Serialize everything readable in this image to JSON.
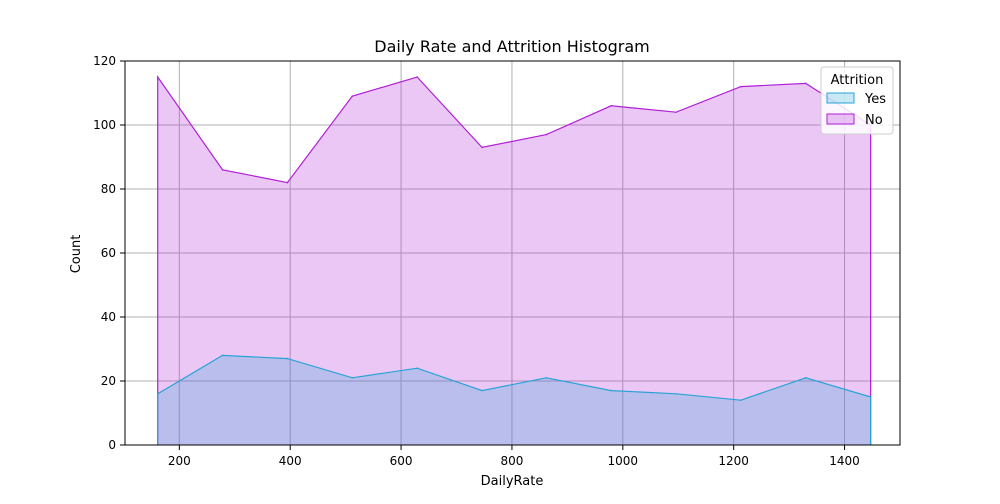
{
  "chart_data": {
    "type": "area",
    "title": "Daily Rate and Attrition Histogram",
    "xlabel": "DailyRate",
    "ylabel": "Count",
    "xlim": [
      102,
      1500
    ],
    "ylim": [
      0,
      120
    ],
    "x_ticks": [
      200,
      400,
      600,
      800,
      1000,
      1200,
      1400
    ],
    "y_ticks": [
      0,
      20,
      40,
      60,
      80,
      100,
      120
    ],
    "grid": true,
    "legend": {
      "title": "Attrition",
      "placement": "top-right"
    },
    "x": [
      161,
      278,
      395,
      512,
      629,
      746,
      862,
      979,
      1096,
      1213,
      1330,
      1447
    ],
    "series": [
      {
        "name": "Yes",
        "color": "#29a3d6",
        "values": [
          16,
          28,
          27,
          21,
          24,
          17,
          21,
          17,
          16,
          14,
          21,
          15
        ]
      },
      {
        "name": "No",
        "color": "#b01fd6",
        "values": [
          115,
          86,
          82,
          109,
          115,
          93,
          97,
          106,
          104,
          112,
          113,
          100
        ]
      }
    ]
  }
}
